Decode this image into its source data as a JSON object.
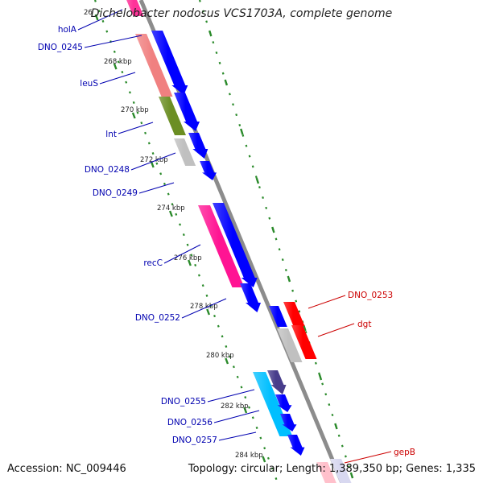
{
  "title": "Dichelobacter nodosus VCS1703A, complete genome",
  "accession_text": "Accession: NC_009446",
  "summary_text": "Topology: circular; Length: 1,389,350 bp; Genes: 1,335",
  "colors": {
    "backbone": "#8c8c8c",
    "ticks": "#2a8a2a",
    "left_labels": "#0000b0",
    "right_labels": "#cc0000"
  },
  "kbp_ticks": [
    {
      "label": "26"
    },
    {
      "label": "268 kbp"
    },
    {
      "label": "270 kbp"
    },
    {
      "label": "272 kbp"
    },
    {
      "label": "274 kbp"
    },
    {
      "label": "276 kbp"
    },
    {
      "label": "278 kbp"
    },
    {
      "label": "280 kbp"
    },
    {
      "label": "282 kbp"
    },
    {
      "label": "284 kbp"
    }
  ],
  "gene_labels_left": [
    {
      "name": "holA"
    },
    {
      "name": "DNO_0245"
    },
    {
      "name": "leuS"
    },
    {
      "name": "lnt"
    },
    {
      "name": "DNO_0248"
    },
    {
      "name": "DNO_0249"
    },
    {
      "name": "recC"
    },
    {
      "name": "DNO_0252"
    },
    {
      "name": "DNO_0255"
    },
    {
      "name": "DNO_0256"
    },
    {
      "name": "DNO_0257"
    }
  ],
  "gene_labels_right": [
    {
      "name": "DNO_0253"
    },
    {
      "name": "dgt"
    },
    {
      "name": "gepB"
    }
  ],
  "features": [
    {
      "type": "COG",
      "color": "#ff3399",
      "gene": "holA"
    },
    {
      "type": "CDS",
      "color": "#0000ff",
      "gene": "DNO_0245"
    },
    {
      "type": "COG",
      "color": "#f08080",
      "gene": "leuS"
    },
    {
      "type": "CDS",
      "color": "#0000ff",
      "gene": "leuS"
    },
    {
      "type": "COG",
      "color": "#6b8e23",
      "gene": "lnt"
    },
    {
      "type": "CDS",
      "color": "#0000ff",
      "gene": "lnt"
    },
    {
      "type": "COG",
      "color": "#c0c0c0",
      "gene": "DNO_0248"
    },
    {
      "type": "CDS",
      "color": "#0000ff",
      "gene": "DNO_0248"
    },
    {
      "type": "CDS",
      "color": "#0000ff",
      "gene": "DNO_0249"
    },
    {
      "type": "COG",
      "color": "#ff1493",
      "gene": "recC"
    },
    {
      "type": "CDS",
      "color": "#0000ff",
      "gene": "recC"
    },
    {
      "type": "CDS",
      "color": "#0000ff",
      "gene": "DNO_0252"
    },
    {
      "type": "COG",
      "color": "#ff0000",
      "gene": "DNO_0253"
    },
    {
      "type": "COG",
      "color": "#c0c0c0",
      "gene": "DNO_0253"
    },
    {
      "type": "COG",
      "color": "#ff0000",
      "gene": "dgt"
    },
    {
      "type": "COG",
      "color": "#00bfff",
      "gene": "dgt"
    },
    {
      "type": "COG",
      "color": "#483d8b",
      "gene": "DNO_0255"
    },
    {
      "type": "CDS",
      "color": "#0000ff",
      "gene": "DNO_0255"
    },
    {
      "type": "CDS",
      "color": "#0000ff",
      "gene": "DNO_0256"
    },
    {
      "type": "CDS",
      "color": "#0000ff",
      "gene": "DNO_0257"
    },
    {
      "type": "COG",
      "color": "#ffc0cb",
      "gene": "gepB"
    },
    {
      "type": "COG",
      "color": "#d8d8f0",
      "gene": "gepB"
    }
  ]
}
